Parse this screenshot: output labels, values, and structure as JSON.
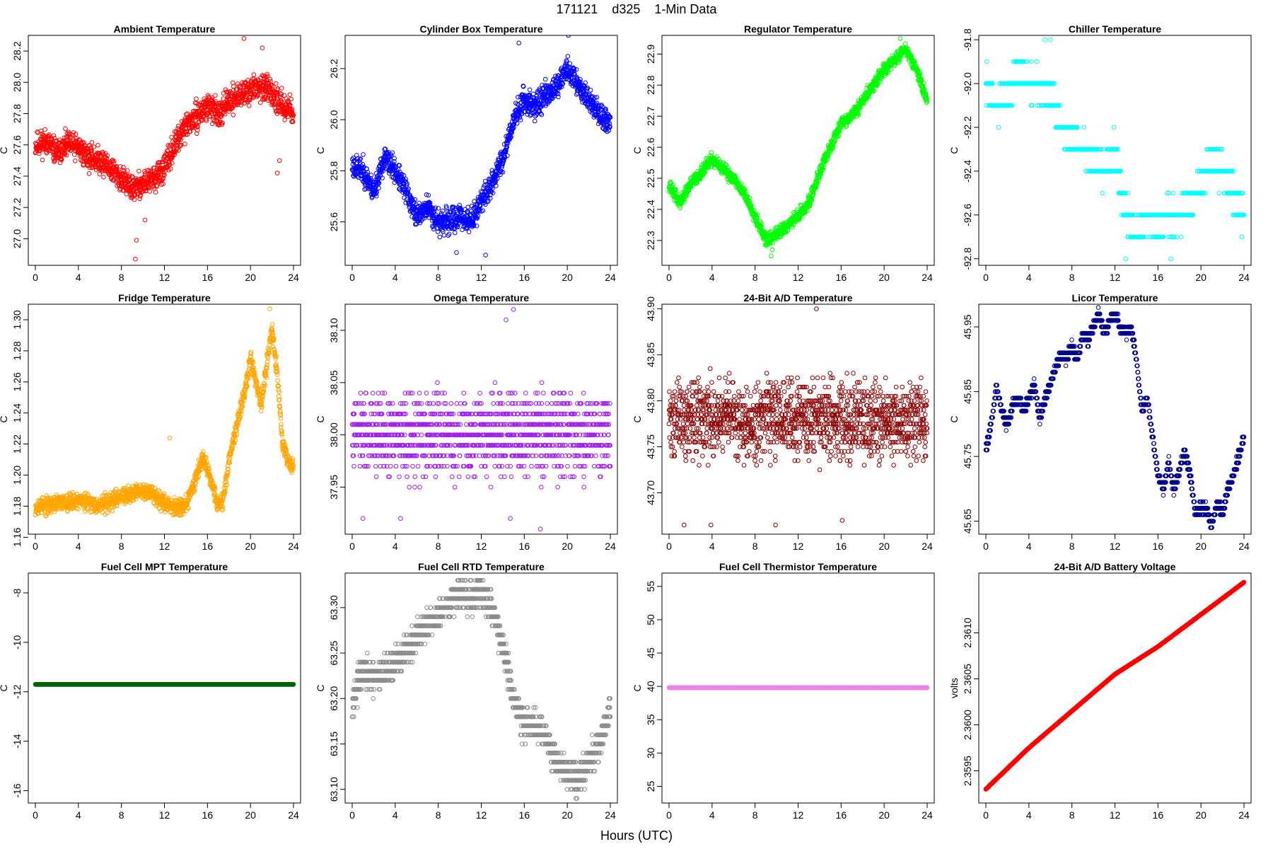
{
  "figure": {
    "suptitle": "171121    d325    1-Min Data",
    "xlabel": "Hours (UTC)"
  },
  "chart_data": [
    {
      "type": "scatter",
      "title": "Ambient Temperature",
      "ylabel": "C",
      "color": "#ff0000",
      "marker": "open-circle",
      "xlim": [
        0,
        24
      ],
      "xticks": [
        0,
        4,
        8,
        12,
        16,
        20,
        24
      ],
      "ylim": [
        26.83,
        28.3
      ],
      "yticks": [
        "27.0",
        "27.2",
        "27.4",
        "27.6",
        "27.8",
        "28.0",
        "28.2"
      ],
      "x": [
        0,
        1,
        2,
        3,
        4,
        5,
        6,
        7,
        8,
        9,
        10,
        11,
        12,
        13,
        14,
        15,
        16,
        17,
        18,
        19,
        20,
        21,
        22,
        23,
        24
      ],
      "y": [
        27.6,
        27.62,
        27.55,
        27.6,
        27.58,
        27.52,
        27.5,
        27.45,
        27.38,
        27.32,
        27.35,
        27.38,
        27.45,
        27.6,
        27.72,
        27.78,
        27.85,
        27.8,
        27.88,
        27.92,
        27.95,
        27.98,
        27.92,
        27.85,
        27.82
      ],
      "spread": 0.12,
      "n": 1440,
      "seed": 11,
      "outliers": [
        [
          9.3,
          26.87
        ],
        [
          9.4,
          26.99
        ],
        [
          10.2,
          27.12
        ],
        [
          22.5,
          27.42
        ],
        [
          22.7,
          27.5
        ],
        [
          21.1,
          28.22
        ],
        [
          19.4,
          28.28
        ]
      ]
    },
    {
      "type": "scatter",
      "title": "Cylinder Box Temperature",
      "ylabel": "C",
      "color": "#0000ff",
      "marker": "open-circle",
      "xlim": [
        0,
        24
      ],
      "xticks": [
        0,
        4,
        8,
        12,
        16,
        20,
        24
      ],
      "ylim": [
        25.43,
        26.33
      ],
      "yticks": [
        "25.6",
        "25.8",
        "26.0",
        "26.2"
      ],
      "x": [
        0,
        1,
        2,
        3,
        4,
        5,
        6,
        7,
        8,
        9,
        10,
        11,
        12,
        13,
        14,
        15,
        16,
        17,
        18,
        19,
        20,
        21,
        22,
        23,
        24
      ],
      "y": [
        25.82,
        25.8,
        25.72,
        25.85,
        25.8,
        25.72,
        25.62,
        25.66,
        25.6,
        25.6,
        25.62,
        25.6,
        25.68,
        25.75,
        25.85,
        26.0,
        26.08,
        26.05,
        26.1,
        26.12,
        26.2,
        26.14,
        26.08,
        26.02,
        25.98
      ],
      "spread": 0.07,
      "n": 1440,
      "seed": 23,
      "outliers": [
        [
          15.5,
          26.3
        ],
        [
          20.1,
          26.33
        ],
        [
          12.4,
          25.47
        ],
        [
          9.7,
          25.48
        ]
      ]
    },
    {
      "type": "scatter",
      "title": "Regulator Temperature",
      "ylabel": "C",
      "color": "#00ff00",
      "marker": "open-circle",
      "xlim": [
        0,
        24
      ],
      "xticks": [
        0,
        4,
        8,
        12,
        16,
        20,
        24
      ],
      "ylim": [
        22.22,
        22.96
      ],
      "yticks": [
        "22.3",
        "22.4",
        "22.5",
        "22.6",
        "22.7",
        "22.8",
        "22.9"
      ],
      "x": [
        0,
        1,
        2,
        3,
        4,
        5,
        6,
        7,
        8,
        9,
        10,
        11,
        12,
        13,
        14,
        15,
        16,
        17,
        18,
        19,
        20,
        21,
        22,
        23,
        24
      ],
      "y": [
        22.48,
        22.42,
        22.48,
        22.52,
        22.56,
        22.53,
        22.5,
        22.45,
        22.38,
        22.3,
        22.32,
        22.35,
        22.38,
        22.42,
        22.52,
        22.6,
        22.68,
        22.7,
        22.75,
        22.8,
        22.85,
        22.88,
        22.92,
        22.85,
        22.75
      ],
      "spread": 0.03,
      "n": 1440,
      "seed": 37,
      "outliers": [
        [
          9.5,
          22.25
        ],
        [
          9.6,
          22.27
        ],
        [
          21.5,
          22.95
        ]
      ]
    },
    {
      "type": "scatter",
      "title": "Chiller Temperature",
      "ylabel": "C",
      "color": "#00ffff",
      "marker": "open-circle",
      "xlim": [
        0,
        24
      ],
      "xticks": [
        0,
        4,
        8,
        12,
        16,
        20,
        24
      ],
      "ylim": [
        -92.83,
        -91.78
      ],
      "yticks": [
        "-92.8",
        "-92.6",
        "-92.4",
        "-92.2",
        "-92.0",
        "-91.8"
      ],
      "x": [
        0,
        1,
        2,
        3,
        4,
        5,
        6,
        7,
        8,
        9,
        10,
        11,
        12,
        13,
        14,
        15,
        16,
        17,
        18,
        19,
        20,
        21,
        22,
        23,
        24
      ],
      "y": [
        -92.0,
        -92.1,
        -92.05,
        -91.95,
        -92.0,
        -92.0,
        -92.05,
        -92.2,
        -92.25,
        -92.3,
        -92.35,
        -92.4,
        -92.3,
        -92.6,
        -92.7,
        -92.6,
        -92.65,
        -92.6,
        -92.6,
        -92.55,
        -92.45,
        -92.35,
        -92.4,
        -92.5,
        -92.6
      ],
      "spread": 0.09,
      "n": 1440,
      "seed": 41,
      "quantize": 0.1,
      "outliers": [
        [
          5.5,
          -91.8
        ],
        [
          6.0,
          -91.8
        ],
        [
          13.0,
          -92.8
        ],
        [
          17.2,
          -92.8
        ]
      ]
    },
    {
      "type": "scatter",
      "title": "Fridge Temperature",
      "ylabel": "C",
      "color": "#ffa500",
      "marker": "open-circle",
      "xlim": [
        0,
        24
      ],
      "xticks": [
        0,
        4,
        8,
        12,
        16,
        20,
        24
      ],
      "ylim": [
        1.162,
        1.31
      ],
      "yticks": [
        "1.16",
        "1.18",
        "1.20",
        "1.22",
        "1.24",
        "1.26",
        "1.28",
        "1.30"
      ],
      "x": [
        0,
        1,
        2,
        3,
        4,
        5,
        6,
        7,
        8,
        9,
        10,
        11,
        12,
        13,
        14,
        15,
        15.5,
        16,
        17,
        17.5,
        18,
        19,
        19.5,
        20,
        20.5,
        21,
        21.5,
        22,
        22.5,
        23,
        23.5,
        24
      ],
      "y": [
        1.18,
        1.18,
        1.182,
        1.183,
        1.184,
        1.182,
        1.181,
        1.183,
        1.186,
        1.188,
        1.19,
        1.188,
        1.182,
        1.18,
        1.18,
        1.2,
        1.212,
        1.205,
        1.18,
        1.185,
        1.21,
        1.24,
        1.255,
        1.275,
        1.26,
        1.245,
        1.27,
        1.295,
        1.265,
        1.22,
        1.21,
        1.205
      ],
      "spread": 0.008,
      "n": 1440,
      "seed": 53,
      "outliers": [
        [
          21.8,
          1.307
        ],
        [
          12.5,
          1.224
        ],
        [
          23.8,
          1.203
        ]
      ]
    },
    {
      "type": "scatter",
      "title": "Omega Temperature",
      "ylabel": "C",
      "color": "#a020f0",
      "marker": "open-circle",
      "xlim": [
        0,
        24
      ],
      "xticks": [
        0,
        4,
        8,
        12,
        16,
        20,
        24
      ],
      "ylim": [
        37.905,
        38.125
      ],
      "yticks": [
        "37.95",
        "38.00",
        "38.05",
        "38.10"
      ],
      "x": [
        0,
        24
      ],
      "y": [
        38.0,
        38.0
      ],
      "spread": 0.055,
      "n": 1440,
      "seed": 61,
      "quantize": 0.01,
      "outliers": [
        [
          15,
          38.12
        ],
        [
          14.3,
          38.11
        ],
        [
          17.5,
          37.91
        ],
        [
          1,
          37.92
        ],
        [
          14.7,
          37.92
        ],
        [
          4.5,
          37.92
        ]
      ]
    },
    {
      "type": "scatter",
      "title": "24-Bit A/D Temperature",
      "ylabel": "C",
      "color": "#8b0000",
      "marker": "open-circle",
      "xlim": [
        0,
        24
      ],
      "xticks": [
        0,
        4,
        8,
        12,
        16,
        20,
        24
      ],
      "ylim": [
        43.655,
        43.905
      ],
      "yticks": [
        "43.70",
        "43.75",
        "43.80",
        "43.85",
        "43.90"
      ],
      "x": [
        0,
        24
      ],
      "y": [
        43.78,
        43.78
      ],
      "spread": 0.06,
      "n": 1440,
      "seed": 71,
      "quantize": 0.005,
      "outliers": [
        [
          13.7,
          43.9
        ],
        [
          9.9,
          43.665
        ],
        [
          1.4,
          43.665
        ],
        [
          3.9,
          43.665
        ],
        [
          16.1,
          43.67
        ]
      ]
    },
    {
      "type": "scatter",
      "title": "Licor Temperature",
      "ylabel": "C",
      "color": "#00008b",
      "marker": "open-circle",
      "xlim": [
        0,
        24
      ],
      "xticks": [
        0,
        4,
        8,
        12,
        16,
        20,
        24
      ],
      "ylim": [
        45.63,
        45.985
      ],
      "yticks": [
        "45.65",
        "45.75",
        "45.85",
        "45.95"
      ],
      "x": [
        0,
        0.5,
        1,
        1.5,
        2,
        2.5,
        3,
        3.5,
        4,
        4.5,
        5,
        5.5,
        6,
        6.5,
        7,
        7.5,
        8,
        8.5,
        9,
        9.5,
        10,
        10.5,
        11,
        11.5,
        12,
        12.5,
        13,
        13.5,
        14,
        14.5,
        15,
        15.5,
        16,
        16.5,
        17,
        17.5,
        18,
        18.5,
        19,
        19.5,
        20,
        20.5,
        21,
        21.5,
        22,
        22.5,
        23,
        23.5,
        24
      ],
      "y": [
        45.76,
        45.8,
        45.86,
        45.82,
        45.8,
        45.83,
        45.84,
        45.82,
        45.84,
        45.86,
        45.81,
        45.84,
        45.86,
        45.89,
        45.91,
        45.9,
        45.92,
        45.9,
        45.94,
        45.93,
        45.95,
        45.97,
        45.94,
        45.96,
        45.97,
        45.95,
        45.94,
        45.95,
        45.9,
        45.82,
        45.84,
        45.78,
        45.72,
        45.7,
        45.74,
        45.7,
        45.73,
        45.76,
        45.72,
        45.66,
        45.67,
        45.67,
        45.64,
        45.68,
        45.66,
        45.7,
        45.72,
        45.75,
        45.78
      ],
      "spread": 0.012,
      "n": 1440,
      "seed": 83,
      "quantize": 0.01,
      "outliers": []
    },
    {
      "type": "scatter",
      "title": "Fuel Cell MPT Temperature",
      "ylabel": "C",
      "color": "#006400",
      "marker": "open-circle",
      "xlim": [
        0,
        24
      ],
      "xticks": [
        0,
        4,
        8,
        12,
        16,
        20,
        24
      ],
      "ylim": [
        -16.5,
        -7.2
      ],
      "yticks": [
        "-16",
        "-14",
        "-12",
        "-10",
        "-8"
      ],
      "x": [
        0,
        24
      ],
      "y": [
        -11.7,
        -11.7
      ],
      "spread": 0,
      "n": 1440,
      "seed": 91,
      "outliers": []
    },
    {
      "type": "scatter",
      "title": "Fuel Cell RTD Temperature",
      "ylabel": "C",
      "color": "#8c8c8c",
      "marker": "open-circle",
      "xlim": [
        0,
        24
      ],
      "xticks": [
        0,
        4,
        8,
        12,
        16,
        20,
        24
      ],
      "ylim": [
        63.085,
        63.338
      ],
      "yticks": [
        "63.10",
        "63.15",
        "63.20",
        "63.25",
        "63.30"
      ],
      "x": [
        0,
        1,
        2,
        3,
        4,
        5,
        6,
        7,
        8,
        9,
        10,
        11,
        12,
        13,
        14,
        15,
        16,
        17,
        18,
        19,
        20,
        21,
        22,
        23,
        24
      ],
      "y": [
        63.2,
        63.23,
        63.22,
        63.23,
        63.24,
        63.25,
        63.27,
        63.28,
        63.29,
        63.3,
        63.32,
        63.31,
        63.32,
        63.3,
        63.26,
        63.2,
        63.17,
        63.17,
        63.16,
        63.13,
        63.12,
        63.11,
        63.13,
        63.15,
        63.19
      ],
      "spread": 0.025,
      "n": 1440,
      "seed": 97,
      "quantize": 0.01,
      "outliers": [
        [
          20.8,
          63.09
        ]
      ]
    },
    {
      "type": "scatter",
      "title": "Fuel Cell Thermistor Temperature",
      "ylabel": "C",
      "color": "#ee82ee",
      "marker": "open-circle",
      "xlim": [
        0,
        24
      ],
      "xticks": [
        0,
        4,
        8,
        12,
        16,
        20,
        24
      ],
      "ylim": [
        22.5,
        57.0
      ],
      "yticks": [
        "25",
        "30",
        "35",
        "40",
        "45",
        "50",
        "55"
      ],
      "x": [
        0,
        24
      ],
      "y": [
        39.8,
        39.8
      ],
      "spread": 0,
      "n": 1440,
      "seed": 101,
      "outliers": []
    },
    {
      "type": "line",
      "title": "24-Bit A/D Battery Voltage",
      "ylabel": "volts",
      "color": "#ff0000",
      "marker": "open-circle",
      "xlim": [
        0,
        24
      ],
      "xticks": [
        0,
        4,
        8,
        12,
        16,
        20,
        24
      ],
      "ylim": [
        2.35915,
        2.36165
      ],
      "yticks": [
        "2.3595",
        "2.3600",
        "2.3605",
        "2.3610"
      ],
      "x": [
        0,
        4,
        8,
        12,
        16,
        20,
        24
      ],
      "y": [
        2.3593,
        2.35975,
        2.36015,
        2.36055,
        2.36085,
        2.3612,
        2.36155
      ],
      "spread": 4e-06,
      "n": 1440,
      "seed": 107,
      "outliers": []
    }
  ]
}
